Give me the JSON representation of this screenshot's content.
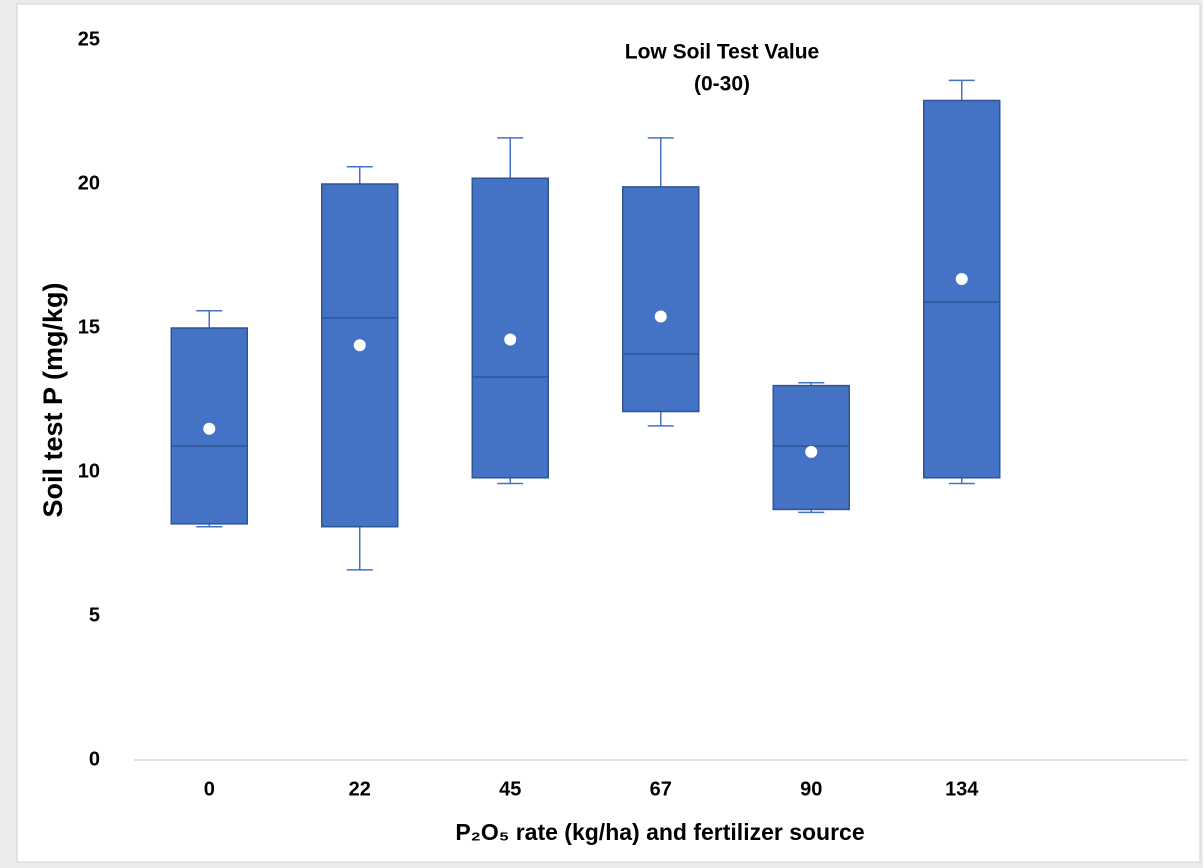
{
  "chart_data": {
    "type": "box",
    "title": "Low Soil Test Value",
    "subtitle": "(0-30)",
    "x_label": "P₂O₅ rate (kg/ha) and fertilizer source",
    "y_label": "Soil test P (mg/kg)",
    "categories": [
      "0",
      "22",
      "45",
      "67",
      "90",
      "134"
    ],
    "color": "#4472c4",
    "min": [
      8.1,
      6.6,
      9.6,
      11.6,
      8.6,
      9.6
    ],
    "q1": [
      8.2,
      8.1,
      9.8,
      12.1,
      8.7,
      9.8
    ],
    "median": [
      10.9,
      15.35,
      13.3,
      14.1,
      10.9,
      15.9
    ],
    "q3": [
      15.0,
      20.0,
      20.2,
      19.9,
      13.0,
      22.9
    ],
    "max": [
      15.6,
      20.6,
      21.6,
      21.6,
      13.1,
      23.6
    ],
    "mean": [
      11.5,
      14.4,
      14.6,
      15.4,
      10.7,
      16.7
    ],
    "ylim": [
      0,
      25
    ],
    "yticks": [
      0,
      5,
      10,
      15,
      20,
      25
    ],
    "grid": false
  }
}
